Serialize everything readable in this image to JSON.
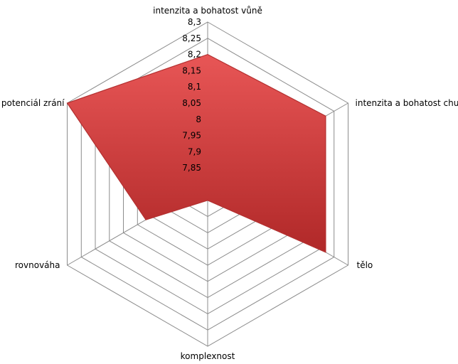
{
  "chart_data": {
    "type": "radar",
    "categories": [
      "intenzita a bohatost vůně",
      "intenzita a bohatost chuti",
      "tělo",
      "komplexnost",
      "rovnováha",
      "potenciál zrání"
    ],
    "series": [
      {
        "values": [
          8.2,
          8.22,
          8.22,
          7.85,
          8.02,
          8.3
        ]
      }
    ],
    "rlim": [
      7.8,
      8.3
    ],
    "ticks": [
      "8,3",
      "8,25",
      "8,2",
      "8,15",
      "8,1",
      "8,05",
      "8",
      "7,95",
      "7,9",
      "7,85"
    ],
    "grid": true,
    "legend": "none",
    "colors": {
      "fill_light": "#e85656",
      "fill_dark": "#b02828",
      "stroke": "#b33030",
      "grid": "#8c8c8c"
    }
  }
}
